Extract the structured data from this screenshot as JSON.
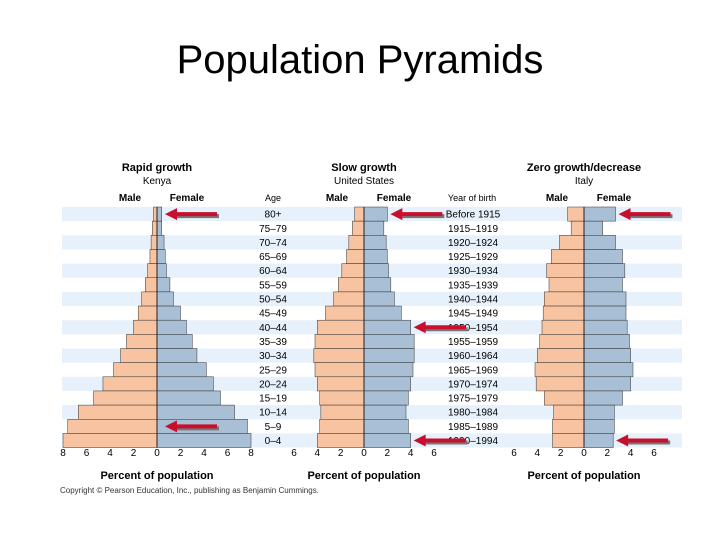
{
  "slide": {
    "title": "Population Pyramids",
    "copyright": "Copyright © Pearson Education, Inc., publishing as Benjamin Cummings."
  },
  "labels": {
    "age_header": "Age",
    "birth_header": "Year of birth",
    "male": "Male",
    "female": "Female",
    "x_axis_label": "Percent of population"
  },
  "colors": {
    "male_bar": "#f7c3a1",
    "female_bar": "#a8bfd6",
    "row_band": "#e6f1fb",
    "arrow": "#c8102e"
  },
  "age_groups": [
    "80+",
    "75–79",
    "70–74",
    "65–69",
    "60–64",
    "55–59",
    "50–54",
    "45–49",
    "40–44",
    "35–39",
    "30–34",
    "25–29",
    "20–24",
    "15–19",
    "10–14",
    "5–9",
    "0–4"
  ],
  "birth_years": [
    "Before 1915",
    "1915–1919",
    "1920–1924",
    "1925–1929",
    "1930–1934",
    "1935–1939",
    "1940–1944",
    "1945–1949",
    "1950–1954",
    "1955–1959",
    "1960–1964",
    "1965–1969",
    "1970–1974",
    "1975–1979",
    "1980–1984",
    "1985–1989",
    "1990–1994"
  ],
  "chart_data": [
    {
      "type": "bar",
      "orientation": "horizontal-pyramid",
      "title": "Rapid growth",
      "subtitle": "Kenya",
      "xlabel": "Percent of population",
      "xlim": [
        -8,
        8
      ],
      "x_ticks": [
        8,
        6,
        4,
        2,
        0,
        2,
        4,
        6,
        8
      ],
      "categories": [
        "80+",
        "75–79",
        "70–74",
        "65–69",
        "60–64",
        "55–59",
        "50–54",
        "45–49",
        "40–44",
        "35–39",
        "30–34",
        "25–29",
        "20–24",
        "15–19",
        "10–14",
        "5–9",
        "0–4"
      ],
      "series": [
        {
          "name": "Male",
          "values": [
            0.3,
            0.4,
            0.5,
            0.6,
            0.8,
            1.0,
            1.3,
            1.6,
            2.0,
            2.6,
            3.1,
            3.7,
            4.6,
            5.4,
            6.7,
            7.6,
            8.0
          ]
        },
        {
          "name": "Female",
          "values": [
            0.4,
            0.4,
            0.6,
            0.7,
            0.8,
            1.1,
            1.4,
            2.0,
            2.5,
            3.0,
            3.4,
            4.2,
            4.8,
            5.4,
            6.6,
            7.7,
            8.0
          ]
        }
      ],
      "annotations": [
        {
          "type": "arrow",
          "at_category": "80+"
        },
        {
          "type": "arrow",
          "at_category": "5–9"
        }
      ]
    },
    {
      "type": "bar",
      "orientation": "horizontal-pyramid",
      "title": "Slow growth",
      "subtitle": "United States",
      "xlabel": "Percent of population",
      "xlim": [
        -6,
        6
      ],
      "x_ticks": [
        6,
        4,
        2,
        0,
        2,
        4,
        6
      ],
      "categories": [
        "80+",
        "75–79",
        "70–74",
        "65–69",
        "60–64",
        "55–59",
        "50–54",
        "45–49",
        "40–44",
        "35–39",
        "30–34",
        "25–29",
        "20–24",
        "15–19",
        "10–14",
        "5–9",
        "0–4"
      ],
      "series": [
        {
          "name": "Male",
          "values": [
            0.8,
            1.0,
            1.3,
            1.5,
            1.9,
            2.2,
            2.6,
            3.3,
            4.0,
            4.2,
            4.3,
            4.2,
            4.0,
            3.8,
            3.7,
            3.8,
            4.0
          ]
        },
        {
          "name": "Female",
          "values": [
            2.0,
            1.7,
            1.9,
            2.0,
            2.1,
            2.3,
            2.6,
            3.2,
            4.0,
            4.3,
            4.3,
            4.2,
            4.0,
            3.8,
            3.6,
            3.8,
            4.0
          ]
        }
      ],
      "annotations": [
        {
          "type": "arrow",
          "at_category": "80+"
        },
        {
          "type": "arrow",
          "at_category": "40–44"
        },
        {
          "type": "arrow",
          "at_category": "0–4"
        }
      ]
    },
    {
      "type": "bar",
      "orientation": "horizontal-pyramid",
      "title": "Zero growth/decrease",
      "subtitle": "Italy",
      "xlabel": "Percent of population",
      "xlim": [
        -6,
        6
      ],
      "x_ticks": [
        6,
        4,
        2,
        0,
        2,
        4,
        6
      ],
      "categories": [
        "80+",
        "75–79",
        "70–74",
        "65–69",
        "60–64",
        "55–59",
        "50–54",
        "45–49",
        "40–44",
        "35–39",
        "30–34",
        "25–29",
        "20–24",
        "15–19",
        "10–14",
        "5–9",
        "0–4"
      ],
      "series": [
        {
          "name": "Male",
          "values": [
            1.4,
            1.1,
            2.1,
            2.8,
            3.2,
            3.0,
            3.4,
            3.5,
            3.6,
            3.8,
            4.0,
            4.2,
            4.1,
            3.4,
            2.6,
            2.7,
            2.7
          ]
        },
        {
          "name": "Female",
          "values": [
            2.7,
            1.6,
            2.7,
            3.3,
            3.5,
            3.3,
            3.6,
            3.6,
            3.7,
            3.9,
            4.0,
            4.2,
            4.0,
            3.3,
            2.6,
            2.6,
            2.5
          ]
        }
      ],
      "annotations": [
        {
          "type": "arrow",
          "at_category": "80+"
        },
        {
          "type": "arrow",
          "at_category": "0–4"
        }
      ]
    }
  ]
}
